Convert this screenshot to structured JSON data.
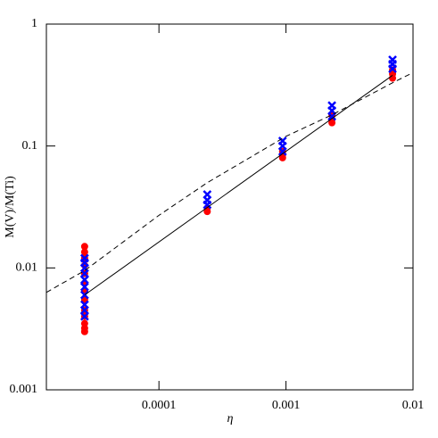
{
  "chart_data": {
    "type": "scatter",
    "x_label": "η",
    "y_label": "M(V)/M(Ti)",
    "xscale": "log",
    "yscale": "log",
    "xlim": [
      1.3e-05,
      0.01
    ],
    "ylim": [
      0.001,
      1
    ],
    "xticks": [
      0.0001,
      0.001,
      0.01
    ],
    "yticks": [
      1,
      0.1,
      0.01,
      0.001
    ],
    "series": [
      {
        "type": "scatter",
        "marker": "circle",
        "color": "#ff0000",
        "x": [
          2.6e-05,
          2.6e-05,
          2.6e-05,
          2.6e-05,
          2.6e-05,
          2.6e-05,
          2.6e-05,
          2.6e-05,
          2.6e-05,
          2.6e-05,
          2.6e-05,
          2.6e-05,
          2.6e-05,
          0.00024,
          0.00024,
          0.00094,
          0.00094,
          0.00094,
          0.0023,
          0.0023,
          0.0023,
          0.0069,
          0.0069,
          0.0069
        ],
        "values": [
          0.015,
          0.0135,
          0.012,
          0.0105,
          0.009,
          0.0075,
          0.0065,
          0.0055,
          0.0045,
          0.004,
          0.0035,
          0.0032,
          0.003,
          0.029,
          0.031,
          0.08,
          0.085,
          0.09,
          0.155,
          0.165,
          0.18,
          0.36,
          0.39,
          0.42
        ]
      },
      {
        "type": "scatter",
        "marker": "x",
        "color": "#0000ff",
        "x": [
          2.6e-05,
          2.6e-05,
          2.6e-05,
          2.6e-05,
          2.6e-05,
          2.6e-05,
          2.6e-05,
          2.6e-05,
          2.6e-05,
          2.6e-05,
          0.00024,
          0.00024,
          0.00024,
          0.00094,
          0.00094,
          0.00094,
          0.0023,
          0.0023,
          0.0023,
          0.0069,
          0.0069,
          0.0069
        ],
        "values": [
          0.004,
          0.0045,
          0.005,
          0.006,
          0.007,
          0.008,
          0.009,
          0.01,
          0.011,
          0.012,
          0.033,
          0.036,
          0.04,
          0.09,
          0.1,
          0.11,
          0.175,
          0.195,
          0.215,
          0.43,
          0.47,
          0.51
        ]
      },
      {
        "type": "line",
        "style": "solid",
        "color": "#000000",
        "x": [
          2.6e-05,
          0.0069
        ],
        "values": [
          0.006,
          0.38
        ]
      },
      {
        "type": "line",
        "style": "dashed",
        "color": "#000000",
        "x": [
          1.3e-05,
          2.6e-05,
          0.0001,
          0.00024,
          0.001,
          0.0023,
          0.0069,
          0.01
        ],
        "values": [
          0.0063,
          0.0095,
          0.027,
          0.05,
          0.12,
          0.18,
          0.33,
          0.4
        ]
      }
    ]
  }
}
